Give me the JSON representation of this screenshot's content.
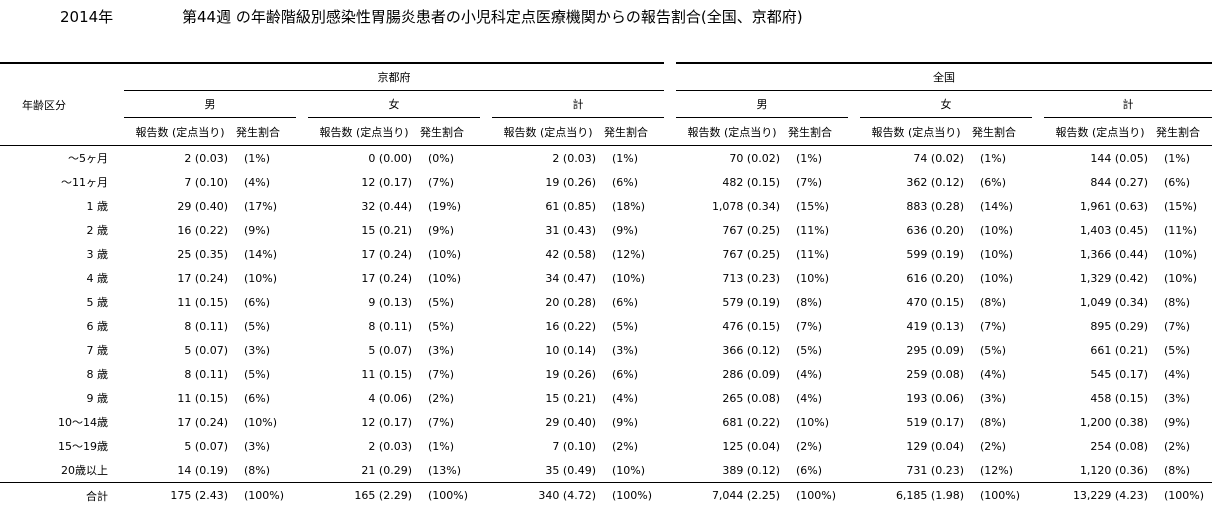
{
  "title": {
    "year": "2014年",
    "text": "第44週 の年齢階級別感染性胃腸炎患者の小児科定点医療機関からの報告割合(全国、京都府)"
  },
  "header": {
    "age_label": "年齢区分",
    "regions": [
      "京都府",
      "全国"
    ],
    "sexes": [
      "男",
      "女",
      "計"
    ],
    "count_label": "報告数 (定点当り)",
    "rate_label": "発生割合"
  },
  "rows": [
    {
      "age": "～5ヶ月",
      "cells": [
        "2 (0.03)",
        "(1%)",
        "0 (0.00)",
        "(0%)",
        "2 (0.03)",
        "(1%)",
        "70 (0.02)",
        "(1%)",
        "74 (0.02)",
        "(1%)",
        "144 (0.05)",
        "(1%)"
      ]
    },
    {
      "age": "～11ヶ月",
      "cells": [
        "7 (0.10)",
        "(4%)",
        "12 (0.17)",
        "(7%)",
        "19 (0.26)",
        "(6%)",
        "482 (0.15)",
        "(7%)",
        "362 (0.12)",
        "(6%)",
        "844 (0.27)",
        "(6%)"
      ]
    },
    {
      "age": "1 歳",
      "cells": [
        "29 (0.40)",
        "(17%)",
        "32 (0.44)",
        "(19%)",
        "61 (0.85)",
        "(18%)",
        "1,078 (0.34)",
        "(15%)",
        "883 (0.28)",
        "(14%)",
        "1,961 (0.63)",
        "(15%)"
      ]
    },
    {
      "age": "2 歳",
      "cells": [
        "16 (0.22)",
        "(9%)",
        "15 (0.21)",
        "(9%)",
        "31 (0.43)",
        "(9%)",
        "767 (0.25)",
        "(11%)",
        "636 (0.20)",
        "(10%)",
        "1,403 (0.45)",
        "(11%)"
      ]
    },
    {
      "age": "3 歳",
      "cells": [
        "25 (0.35)",
        "(14%)",
        "17 (0.24)",
        "(10%)",
        "42 (0.58)",
        "(12%)",
        "767 (0.25)",
        "(11%)",
        "599 (0.19)",
        "(10%)",
        "1,366 (0.44)",
        "(10%)"
      ]
    },
    {
      "age": "4 歳",
      "cells": [
        "17 (0.24)",
        "(10%)",
        "17 (0.24)",
        "(10%)",
        "34 (0.47)",
        "(10%)",
        "713 (0.23)",
        "(10%)",
        "616 (0.20)",
        "(10%)",
        "1,329 (0.42)",
        "(10%)"
      ]
    },
    {
      "age": "5 歳",
      "cells": [
        "11 (0.15)",
        "(6%)",
        "9 (0.13)",
        "(5%)",
        "20 (0.28)",
        "(6%)",
        "579 (0.19)",
        "(8%)",
        "470 (0.15)",
        "(8%)",
        "1,049 (0.34)",
        "(8%)"
      ]
    },
    {
      "age": "6 歳",
      "cells": [
        "8 (0.11)",
        "(5%)",
        "8 (0.11)",
        "(5%)",
        "16 (0.22)",
        "(5%)",
        "476 (0.15)",
        "(7%)",
        "419 (0.13)",
        "(7%)",
        "895 (0.29)",
        "(7%)"
      ]
    },
    {
      "age": "7 歳",
      "cells": [
        "5 (0.07)",
        "(3%)",
        "5 (0.07)",
        "(3%)",
        "10 (0.14)",
        "(3%)",
        "366 (0.12)",
        "(5%)",
        "295 (0.09)",
        "(5%)",
        "661 (0.21)",
        "(5%)"
      ]
    },
    {
      "age": "8 歳",
      "cells": [
        "8 (0.11)",
        "(5%)",
        "11 (0.15)",
        "(7%)",
        "19 (0.26)",
        "(6%)",
        "286 (0.09)",
        "(4%)",
        "259 (0.08)",
        "(4%)",
        "545 (0.17)",
        "(4%)"
      ]
    },
    {
      "age": "9 歳",
      "cells": [
        "11 (0.15)",
        "(6%)",
        "4 (0.06)",
        "(2%)",
        "15 (0.21)",
        "(4%)",
        "265 (0.08)",
        "(4%)",
        "193 (0.06)",
        "(3%)",
        "458 (0.15)",
        "(3%)"
      ]
    },
    {
      "age": "10～14歳",
      "cells": [
        "17 (0.24)",
        "(10%)",
        "12 (0.17)",
        "(7%)",
        "29 (0.40)",
        "(9%)",
        "681 (0.22)",
        "(10%)",
        "519 (0.17)",
        "(8%)",
        "1,200 (0.38)",
        "(9%)"
      ]
    },
    {
      "age": "15～19歳",
      "cells": [
        "5 (0.07)",
        "(3%)",
        "2 (0.03)",
        "(1%)",
        "7 (0.10)",
        "(2%)",
        "125 (0.04)",
        "(2%)",
        "129 (0.04)",
        "(2%)",
        "254 (0.08)",
        "(2%)"
      ]
    },
    {
      "age": "20歳以上",
      "cells": [
        "14 (0.19)",
        "(8%)",
        "21 (0.29)",
        "(13%)",
        "35 (0.49)",
        "(10%)",
        "389 (0.12)",
        "(6%)",
        "731 (0.23)",
        "(12%)",
        "1,120 (0.36)",
        "(8%)"
      ]
    }
  ],
  "total": {
    "age": "合計",
    "cells": [
      "175 (2.43)",
      "(100%)",
      "165 (2.29)",
      "(100%)",
      "340 (4.72)",
      "(100%)",
      "7,044 (2.25)",
      "(100%)",
      "6,185 (1.98)",
      "(100%)",
      "13,229 (4.23)",
      "(100%)"
    ]
  }
}
